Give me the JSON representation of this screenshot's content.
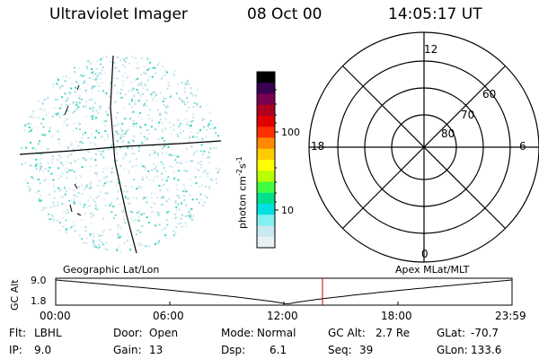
{
  "header": {
    "instrument": "Ultraviolet Imager",
    "date": "08 Oct 00",
    "time": "14:05:17 UT"
  },
  "colorbar": {
    "label_main": "photon cm",
    "label_exp1": "-2",
    "label_mid": "s",
    "label_exp2": "-1",
    "ticks": [
      "100",
      "10"
    ],
    "colors": [
      "#000000",
      "#3a0050",
      "#7a0050",
      "#b00020",
      "#e00000",
      "#ff3000",
      "#ff8a00",
      "#ffcc00",
      "#ffff00",
      "#b8ff00",
      "#40ff40",
      "#00e08a",
      "#00e0e0",
      "#80f0f0",
      "#c8e8f0",
      "#e8f0f4"
    ]
  },
  "polar_grid": {
    "mlt_labels": [
      "12",
      "18",
      "6",
      "0"
    ],
    "lat_labels": [
      "60",
      "70",
      "80"
    ]
  },
  "plot_labels": {
    "left": "Geographic Lat/Lon",
    "right": "Apex MLat/MLT"
  },
  "gc_alt_chart": {
    "ylabel": "GC Alt",
    "yticks": [
      "9.0",
      "1.8"
    ],
    "xticks": [
      "00:00",
      "06:00",
      "12:00",
      "18:00",
      "23:59"
    ],
    "marker_color": "#cc0000"
  },
  "status": {
    "flt_label": "Flt:",
    "flt_value": "LBHL",
    "door_label": "Door:",
    "door_value": "Open",
    "mode_label": "Mode:",
    "mode_value": "Normal",
    "gcalt_label": "GC Alt:",
    "gcalt_value": "2.7 Re",
    "glat_label": "GLat:",
    "glat_value": "-70.7",
    "ip_label": "IP:",
    "ip_value": "9.0",
    "gain_label": "Gain:",
    "gain_value": "13",
    "dsp_label": "Dsp:",
    "dsp_value": "6.1",
    "seq_label": "Seq:",
    "seq_value": "39",
    "glon_label": "GLon:",
    "glon_value": "133.6"
  }
}
